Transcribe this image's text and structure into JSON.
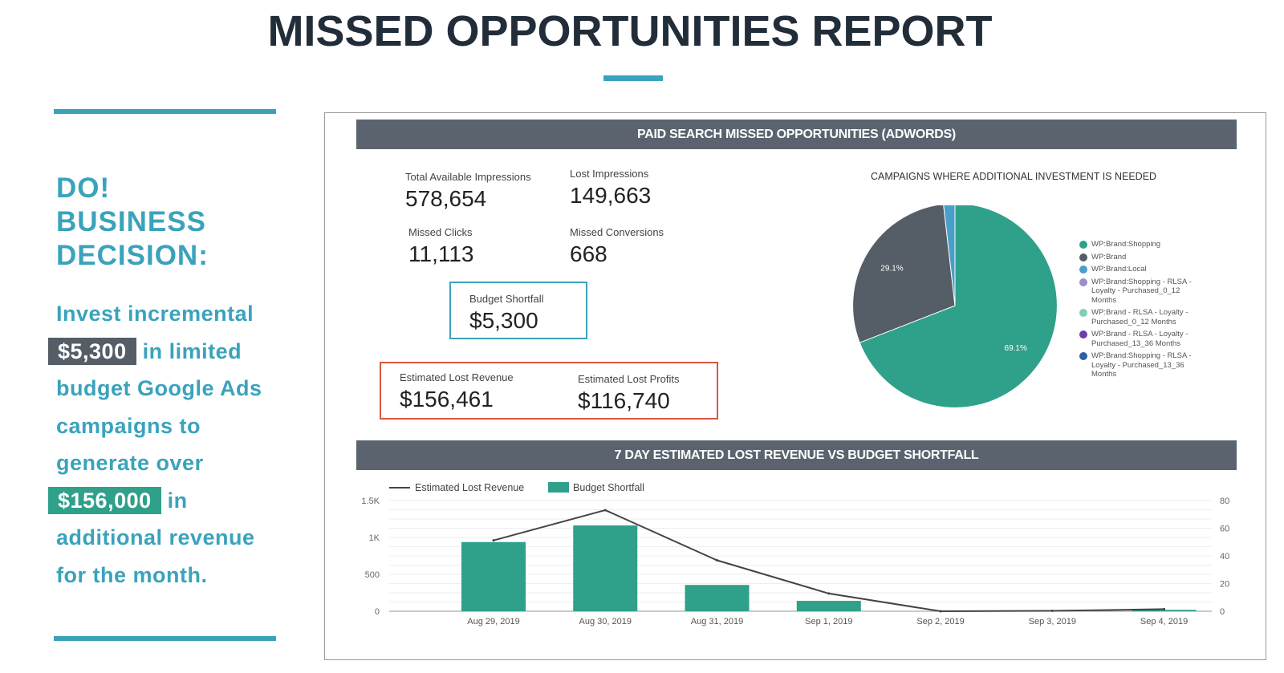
{
  "title": "MISSED OPPORTUNITIES REPORT",
  "side": {
    "heading": [
      "DO!",
      "BUSINESS",
      "DECISION:"
    ],
    "text": {
      "p1": "Invest incremental",
      "amount1": "$5,300",
      "p2": "in limited budget Google Ads campaigns to generate over",
      "amount2": "$156,000",
      "p3": "in additional revenue for the month."
    }
  },
  "panel": {
    "header": "PAID SEARCH MISSED OPPORTUNITIES (ADWORDS)",
    "kpis": [
      {
        "label": "Total Available Impressions",
        "value": "578,654"
      },
      {
        "label": "Lost Impressions",
        "value": "149,663"
      },
      {
        "label": "Missed Clicks",
        "value": "11,113"
      },
      {
        "label": "Missed Conversions",
        "value": "668"
      }
    ],
    "budget": {
      "label": "Budget Shortfall",
      "value": "$5,300"
    },
    "lost_revenue": {
      "label": "Estimated Lost Revenue",
      "value": "$156,461"
    },
    "lost_profits": {
      "label": "Estimated Lost Profits",
      "value": "$116,740"
    },
    "bottom_header": "7 DAY ESTIMATED LOST REVENUE VS BUDGET SHORTFALL"
  },
  "chart_data": [
    {
      "type": "pie",
      "title": "CAMPAIGNS WHERE ADDITIONAL INVESTMENT IS NEEDED",
      "slices": [
        {
          "name": "WP:Brand:Shopping",
          "value": 69.1,
          "color": "#2fa08a",
          "label": "69.1%"
        },
        {
          "name": "WP:Brand",
          "value": 29.1,
          "color": "#555d66",
          "label": "29.1%"
        },
        {
          "name": "WP:Brand:Local",
          "value": 1.8,
          "color": "#4a9fc8",
          "label": ""
        },
        {
          "name": "WP:Brand:Shopping - RLSA - Loyalty - Purchased_0_12 Months",
          "value": 0,
          "color": "#9b8fc4",
          "label": ""
        },
        {
          "name": "WP:Brand - RLSA - Loyalty - Purchased_0_12 Months",
          "value": 0,
          "color": "#7fcfb8",
          "label": ""
        },
        {
          "name": "WP:Brand - RLSA - Loyalty - Purchased_13_36 Months",
          "value": 0,
          "color": "#6a3fa8",
          "label": ""
        },
        {
          "name": "WP:Brand:Shopping - RLSA - Loyalty - Purchased_13_36 Months",
          "value": 0,
          "color": "#2e5ea8",
          "label": ""
        }
      ],
      "legend": "right"
    },
    {
      "type": "bar+line",
      "categories": [
        "Aug 29, 2019",
        "Aug 30, 2019",
        "Aug 31, 2019",
        "Sep 1, 2019",
        "Sep 2, 2019",
        "Sep 3, 2019",
        "Sep 4, 2019"
      ],
      "series": [
        {
          "name": "Estimated Lost Revenue",
          "type": "line",
          "axis": "left",
          "color": "#444444",
          "values": [
            960,
            1370,
            690,
            240,
            0,
            5,
            28
          ]
        },
        {
          "name": "Budget Shortfall",
          "type": "bar",
          "axis": "right",
          "color": "#2fa08a",
          "values": [
            50,
            62,
            19,
            7.5,
            0,
            0,
            1
          ]
        }
      ],
      "left_axis": {
        "ticks": [
          "0",
          "500",
          "1K",
          "1.5K"
        ],
        "range": [
          0,
          1500
        ]
      },
      "right_axis": {
        "ticks": [
          "0",
          "20",
          "40",
          "60",
          "80"
        ],
        "range": [
          0,
          80
        ]
      },
      "grid": true,
      "legend": "top-left"
    }
  ]
}
